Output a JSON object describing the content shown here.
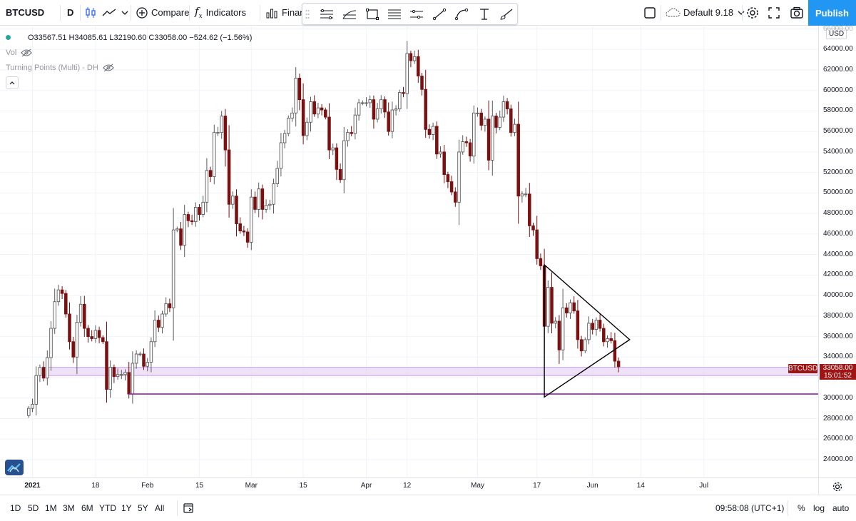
{
  "toolbar": {
    "symbol": "BTCUSD",
    "interval": "D",
    "compare_label": "Compare",
    "indicators_label": "Indicators",
    "financials_label": "Finan",
    "layout_name": "Default 9.18",
    "publish_label": "Publish"
  },
  "legend": {
    "ohlc": "O33567.51 H34085.61 L32190.60 C33058.00 −524.62 (−1.56%)",
    "vol_label": "Vol",
    "indicator_label": "Turning Points (Multi) - DH"
  },
  "price_axis": {
    "labels": [
      "66000.00",
      "64000.00",
      "62000.00",
      "60000.00",
      "58000.00",
      "56000.00",
      "54000.00",
      "52000.00",
      "50000.00",
      "48000.00",
      "46000.00",
      "44000.00",
      "42000.00",
      "40000.00",
      "38000.00",
      "36000.00",
      "34000.00",
      "32000.00",
      "30000.00",
      "28000.00",
      "26000.00",
      "24000.00"
    ],
    "currency": "USD",
    "current_symbol": "BTCUSD",
    "current_price": "33058.00",
    "countdown": "15:01:52"
  },
  "time_axis": {
    "labels": [
      "2021",
      "18",
      "Feb",
      "15",
      "Mar",
      "15",
      "Apr",
      "12",
      "May",
      "17",
      "Jun",
      "14",
      "Jul"
    ]
  },
  "bottom_bar": {
    "ranges": [
      "1D",
      "5D",
      "1M",
      "3M",
      "6M",
      "YTD",
      "1Y",
      "5Y",
      "All"
    ],
    "clock": "09:58:08 (UTC+1)",
    "percent_label": "%",
    "log_label": "log",
    "auto_label": "auto"
  },
  "colors": {
    "up_candle": "#5b5b5b",
    "down_candle": "#7b1010",
    "zone_fill": "#e9d7f6",
    "zone_border": "#c79fe6",
    "support_line": "#8e24aa",
    "triangle": "#000000",
    "accent": "#2196f3",
    "price_tag": "#a11414"
  },
  "chart_data": {
    "type": "candlestick",
    "symbol": "BTCUSD",
    "interval": "D",
    "ylim": [
      23000,
      66700
    ],
    "x": [
      "2020-12-31",
      "2021-01-01",
      "2021-01-02",
      "2021-01-03",
      "2021-01-04",
      "2021-01-05",
      "2021-01-06",
      "2021-01-07",
      "2021-01-08",
      "2021-01-09",
      "2021-01-10",
      "2021-01-11",
      "2021-01-12",
      "2021-01-13",
      "2021-01-14",
      "2021-01-15",
      "2021-01-16",
      "2021-01-17",
      "2021-01-18",
      "2021-01-19",
      "2021-01-20",
      "2021-01-21",
      "2021-01-22",
      "2021-01-23",
      "2021-01-24",
      "2021-01-25",
      "2021-01-26",
      "2021-01-27",
      "2021-01-28",
      "2021-01-29",
      "2021-01-30",
      "2021-01-31",
      "2021-02-01",
      "2021-02-02",
      "2021-02-03",
      "2021-02-04",
      "2021-02-05",
      "2021-02-06",
      "2021-02-07",
      "2021-02-08",
      "2021-02-09",
      "2021-02-10",
      "2021-02-11",
      "2021-02-12",
      "2021-02-13",
      "2021-02-14",
      "2021-02-15",
      "2021-02-16",
      "2021-02-17",
      "2021-02-18",
      "2021-02-19",
      "2021-02-20",
      "2021-02-21",
      "2021-02-22",
      "2021-02-23",
      "2021-02-24",
      "2021-02-25",
      "2021-02-26",
      "2021-02-27",
      "2021-02-28",
      "2021-03-01",
      "2021-03-02",
      "2021-03-03",
      "2021-03-04",
      "2021-03-05",
      "2021-03-06",
      "2021-03-07",
      "2021-03-08",
      "2021-03-09",
      "2021-03-10",
      "2021-03-11",
      "2021-03-12",
      "2021-03-13",
      "2021-03-14",
      "2021-03-15",
      "2021-03-16",
      "2021-03-17",
      "2021-03-18",
      "2021-03-19",
      "2021-03-20",
      "2021-03-21",
      "2021-03-22",
      "2021-03-23",
      "2021-03-24",
      "2021-03-25",
      "2021-03-26",
      "2021-03-27",
      "2021-03-28",
      "2021-03-29",
      "2021-03-30",
      "2021-03-31",
      "2021-04-01",
      "2021-04-02",
      "2021-04-03",
      "2021-04-04",
      "2021-04-05",
      "2021-04-06",
      "2021-04-07",
      "2021-04-08",
      "2021-04-09",
      "2021-04-10",
      "2021-04-11",
      "2021-04-12",
      "2021-04-13",
      "2021-04-14",
      "2021-04-15",
      "2021-04-16",
      "2021-04-17",
      "2021-04-18",
      "2021-04-19",
      "2021-04-20",
      "2021-04-21",
      "2021-04-22",
      "2021-04-23",
      "2021-04-24",
      "2021-04-25",
      "2021-04-26",
      "2021-04-27",
      "2021-04-28",
      "2021-04-29",
      "2021-04-30",
      "2021-05-01",
      "2021-05-02",
      "2021-05-03",
      "2021-05-04",
      "2021-05-05",
      "2021-05-06",
      "2021-05-07",
      "2021-05-08",
      "2021-05-09",
      "2021-05-10",
      "2021-05-11",
      "2021-05-12",
      "2021-05-13",
      "2021-05-14",
      "2021-05-15",
      "2021-05-16",
      "2021-05-17",
      "2021-05-18",
      "2021-05-19",
      "2021-05-20",
      "2021-05-21",
      "2021-05-22",
      "2021-05-23",
      "2021-05-24",
      "2021-05-25",
      "2021-05-26",
      "2021-05-27",
      "2021-05-28",
      "2021-05-29",
      "2021-05-30",
      "2021-05-31",
      "2021-06-01",
      "2021-06-02",
      "2021-06-03",
      "2021-06-04",
      "2021-06-05",
      "2021-06-06",
      "2021-06-07",
      "2021-06-08"
    ],
    "close": [
      29000,
      29400,
      32200,
      33000,
      31950,
      33950,
      36800,
      39400,
      40550,
      40200,
      38200,
      35500,
      34000,
      37400,
      39150,
      36800,
      36000,
      35800,
      36600,
      35900,
      35500,
      30850,
      33000,
      32100,
      32300,
      32300,
      32500,
      30400,
      33400,
      34300,
      34300,
      33100,
      33500,
      35500,
      37600,
      36900,
      38200,
      39200,
      38800,
      46400,
      46500,
      44900,
      47900,
      47300,
      47200,
      48600,
      47900,
      49100,
      52200,
      51600,
      55900,
      55900,
      57500,
      54200,
      48900,
      49700,
      47000,
      46300,
      46200,
      45200,
      49600,
      48400,
      50400,
      48400,
      48800,
      48900,
      50900,
      52400,
      54900,
      55800,
      57300,
      57800,
      61200,
      59100,
      55600,
      56900,
      58900,
      57700,
      58300,
      58100,
      57400,
      54200,
      54400,
      52300,
      51300,
      55100,
      55900,
      55800,
      57600,
      58800,
      58800,
      58800,
      59100,
      57200,
      58200,
      59100,
      57900,
      56000,
      58100,
      58200,
      59800,
      59700,
      63600,
      62900,
      63300,
      61400,
      60100,
      56200,
      55700,
      56500,
      53800,
      54000,
      51800,
      51100,
      50100,
      49100,
      54000,
      55000,
      54900,
      53600,
      57800,
      57800,
      56600,
      57200,
      53200,
      57500,
      56400,
      57400,
      58900,
      58200,
      55900,
      56700,
      49700,
      49900,
      49900,
      46800,
      46400,
      43600,
      42900,
      37000,
      40800,
      37300,
      37500,
      34700,
      38800,
      38300,
      39300,
      38500,
      35700,
      34600,
      35700,
      37300,
      36700,
      37600,
      36800,
      35500,
      35800,
      35600,
      33600,
      33058
    ],
    "annotations": [
      {
        "type": "horizontal_zone",
        "from": 32200,
        "to": 33000
      },
      {
        "type": "horizontal_line",
        "price": 30400,
        "start": "2021-01-27"
      },
      {
        "type": "triangle",
        "points": [
          [
            "2021-05-19",
            43000
          ],
          [
            "2021-06-11",
            35700
          ],
          [
            "2021-05-19",
            30100
          ]
        ]
      }
    ]
  }
}
